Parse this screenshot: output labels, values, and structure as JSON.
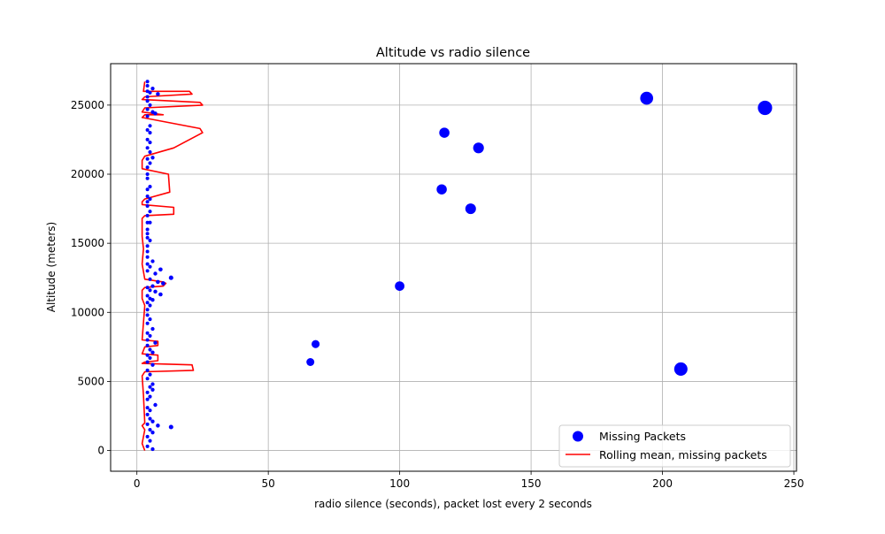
{
  "chart_data": {
    "type": "scatter",
    "title": "Altitude vs radio silence",
    "xlabel": "radio silence (seconds), packet lost every 2 seconds",
    "ylabel": "Altitude (meters)",
    "xlim": [
      -10,
      251
    ],
    "ylim": [
      -1500,
      28000
    ],
    "xticks": [
      0,
      50,
      100,
      150,
      200,
      250
    ],
    "yticks": [
      0,
      5000,
      10000,
      15000,
      20000,
      25000
    ],
    "grid": true,
    "legend_position": "lower right",
    "series": [
      {
        "name": "Missing Packets",
        "kind": "scatter",
        "color": "#0000ff",
        "points": [
          [
            194,
            25500
          ],
          [
            239,
            24800
          ],
          [
            117,
            23000
          ],
          [
            130,
            21900
          ],
          [
            116,
            18900
          ],
          [
            127,
            17500
          ],
          [
            100,
            11900
          ],
          [
            68,
            7700
          ],
          [
            66,
            6400
          ],
          [
            207,
            5900
          ],
          [
            4,
            26700
          ],
          [
            4,
            26400
          ],
          [
            6,
            26200
          ],
          [
            4,
            26000
          ],
          [
            5,
            25900
          ],
          [
            8,
            25800
          ],
          [
            4,
            25600
          ],
          [
            4,
            25300
          ],
          [
            5,
            25000
          ],
          [
            4,
            24700
          ],
          [
            6,
            24500
          ],
          [
            7,
            24400
          ],
          [
            4,
            24200
          ],
          [
            5,
            23500
          ],
          [
            4,
            23200
          ],
          [
            5,
            23000
          ],
          [
            4,
            22500
          ],
          [
            5,
            22300
          ],
          [
            4,
            21900
          ],
          [
            5,
            21600
          ],
          [
            6,
            21200
          ],
          [
            4,
            21100
          ],
          [
            5,
            20800
          ],
          [
            4,
            20500
          ],
          [
            4,
            20000
          ],
          [
            4,
            19700
          ],
          [
            5,
            19100
          ],
          [
            4,
            18900
          ],
          [
            4,
            18400
          ],
          [
            5,
            18200
          ],
          [
            4,
            18000
          ],
          [
            4,
            17700
          ],
          [
            5,
            17300
          ],
          [
            4,
            17000
          ],
          [
            4,
            16500
          ],
          [
            5,
            16500
          ],
          [
            4,
            16000
          ],
          [
            4,
            15700
          ],
          [
            4,
            15400
          ],
          [
            5,
            15200
          ],
          [
            4,
            14800
          ],
          [
            4,
            14400
          ],
          [
            4,
            14000
          ],
          [
            6,
            13700
          ],
          [
            4,
            13500
          ],
          [
            5,
            13300
          ],
          [
            9,
            13100
          ],
          [
            4,
            13000
          ],
          [
            7,
            12800
          ],
          [
            13,
            12500
          ],
          [
            5,
            12400
          ],
          [
            8,
            12200
          ],
          [
            10,
            12100
          ],
          [
            6,
            11900
          ],
          [
            4,
            11800
          ],
          [
            5,
            11600
          ],
          [
            7,
            11500
          ],
          [
            9,
            11300
          ],
          [
            4,
            11200
          ],
          [
            5,
            11000
          ],
          [
            6,
            10900
          ],
          [
            4,
            10700
          ],
          [
            5,
            10500
          ],
          [
            4,
            10200
          ],
          [
            4,
            9800
          ],
          [
            5,
            9500
          ],
          [
            4,
            9200
          ],
          [
            6,
            8800
          ],
          [
            4,
            8500
          ],
          [
            5,
            8300
          ],
          [
            4,
            8000
          ],
          [
            7,
            7800
          ],
          [
            4,
            7600
          ],
          [
            5,
            7300
          ],
          [
            6,
            7100
          ],
          [
            4,
            6900
          ],
          [
            5,
            6700
          ],
          [
            4,
            6400
          ],
          [
            6,
            6200
          ],
          [
            4,
            5800
          ],
          [
            5,
            5500
          ],
          [
            4,
            5200
          ],
          [
            6,
            4800
          ],
          [
            5,
            4600
          ],
          [
            6,
            4400
          ],
          [
            4,
            4200
          ],
          [
            5,
            3900
          ],
          [
            4,
            3700
          ],
          [
            7,
            3300
          ],
          [
            4,
            3100
          ],
          [
            5,
            2900
          ],
          [
            4,
            2600
          ],
          [
            5,
            2300
          ],
          [
            6,
            2100
          ],
          [
            4,
            1900
          ],
          [
            8,
            1800
          ],
          [
            13,
            1700
          ],
          [
            5,
            1500
          ],
          [
            6,
            1300
          ],
          [
            4,
            1000
          ],
          [
            5,
            700
          ],
          [
            4,
            300
          ],
          [
            6,
            100
          ]
        ]
      },
      {
        "name": "Rolling mean, missing packets",
        "kind": "line",
        "color": "#ff0000",
        "points": [
          [
            3,
            26700
          ],
          [
            2.5,
            26000
          ],
          [
            20,
            26000
          ],
          [
            21,
            25800
          ],
          [
            3,
            25600
          ],
          [
            2,
            25400
          ],
          [
            24,
            25200
          ],
          [
            25,
            25000
          ],
          [
            3,
            24800
          ],
          [
            2,
            24500
          ],
          [
            10,
            24300
          ],
          [
            3,
            24300
          ],
          [
            2,
            24100
          ],
          [
            24,
            23300
          ],
          [
            25,
            23000
          ],
          [
            14,
            21900
          ],
          [
            3,
            21300
          ],
          [
            2,
            21000
          ],
          [
            2,
            20400
          ],
          [
            12,
            20000
          ],
          [
            12.5,
            18700
          ],
          [
            3,
            18200
          ],
          [
            2,
            18000
          ],
          [
            2,
            17800
          ],
          [
            14,
            17600
          ],
          [
            14,
            17100
          ],
          [
            3,
            17000
          ],
          [
            2,
            16800
          ],
          [
            2,
            15500
          ],
          [
            2.5,
            14600
          ],
          [
            2,
            13500
          ],
          [
            3,
            12400
          ],
          [
            10,
            12200
          ],
          [
            11,
            12100
          ],
          [
            10,
            11900
          ],
          [
            3,
            11800
          ],
          [
            2,
            11600
          ],
          [
            2,
            11000
          ],
          [
            3,
            10500
          ],
          [
            2,
            8000
          ],
          [
            8,
            7900
          ],
          [
            8,
            7600
          ],
          [
            3,
            7500
          ],
          [
            2,
            7000
          ],
          [
            8,
            6900
          ],
          [
            8,
            6500
          ],
          [
            3,
            6400
          ],
          [
            2,
            6300
          ],
          [
            21,
            6200
          ],
          [
            21.5,
            5800
          ],
          [
            3,
            5700
          ],
          [
            2,
            5400
          ],
          [
            2.5,
            4000
          ],
          [
            3,
            2000
          ],
          [
            2,
            1800
          ],
          [
            3,
            1500
          ],
          [
            2.5,
            1000
          ],
          [
            2,
            500
          ],
          [
            3,
            0
          ]
        ]
      }
    ]
  }
}
